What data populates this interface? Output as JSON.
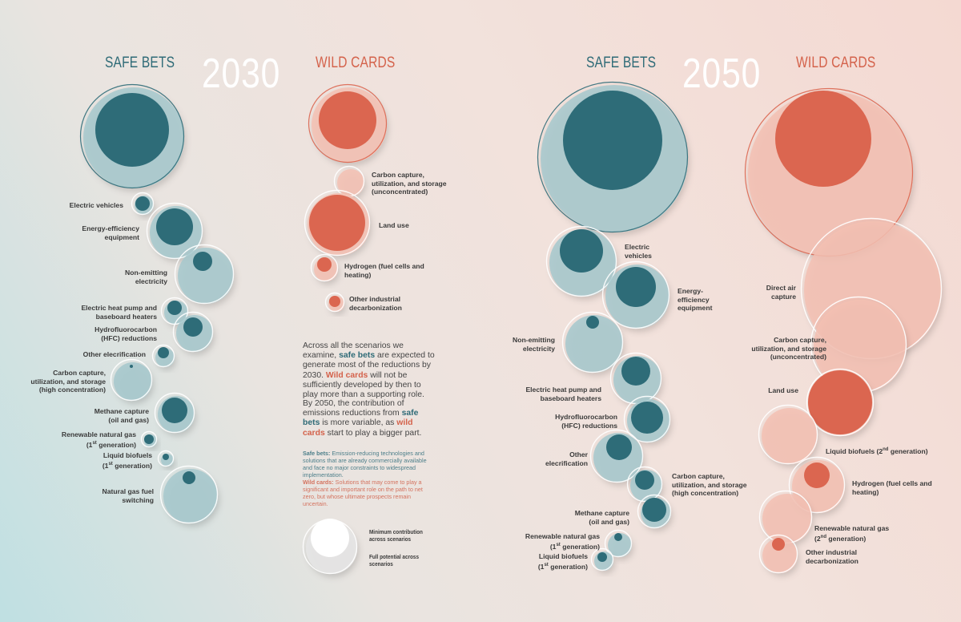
{
  "colors": {
    "safe_dark": "#2e6c78",
    "safe_light": "#a6c8cd",
    "wild_dark": "#db6650",
    "wild_light": "#f3c0b3"
  },
  "headers": {
    "y2030": "2030",
    "y2050": "2050",
    "safe": "SAFE BETS",
    "wild": "WILD CARDS"
  },
  "labels_2030_safe": [
    "Electric vehicles",
    "Energy-efficiency equipment",
    "Non-emitting electricity",
    "Electric heat pump and baseboard heaters",
    "Hydrofluorocarbon (HFC) reductions",
    "Other elecrification",
    "Carbon capture, utilization, and storage (high concentration)",
    "Methane capture (oil and gas)",
    "Renewable natural gas (1st generation)",
    "Liquid biofuels (1st generation)",
    "Natural gas fuel switching"
  ],
  "labels_2030_wild": [
    "Carbon capture, utilization, and storage (unconcentrated)",
    "Land use",
    "Hydrogen (fuel cells and heating)",
    "Other industrial decarbonization"
  ],
  "labels_2050_safe": [
    "Electric vehicles",
    "Energy-efficiency equipment",
    "Non-emitting electricity",
    "Electric heat pump and baseboard heaters",
    "Hydrofluorocarbon (HFC) reductions",
    "Other elecrification",
    "Carbon capture, utilization, and storage (high concentration)",
    "Methane capture (oil and gas)",
    "Renewable natural gas (1st generation)",
    "Liquid biofuels (1st generation)"
  ],
  "labels_2050_wild": [
    "Direct air capture",
    "Carbon capture, utilization, and storage (unconcentrated)",
    "Land use",
    "Liquid biofuels (2nd generation)",
    "Hydrogen (fuel cells and heating)",
    "Renewable natural gas (2nd generation)",
    "Other industrial decarbonization"
  ],
  "text": {
    "p1_a": "Across all the scenarios we examine, ",
    "p1_b": "safe bets",
    "p1_c": " are expected to generate most of the reductions by 2030. ",
    "p1_d": "Wild cards",
    "p1_e": " will not be sufficiently developed by then to play more than a supporting role.",
    "p2_a": "By 2050, the contribution of emissions reductions from ",
    "p2_b": "safe bets",
    "p2_c": " is more variable, as ",
    "p2_d": "wild cards",
    "p2_e": " start to play a bigger part.",
    "sb_def_head": "Safe bets:",
    "sb_def": " Emission-reducing technologies and solutions that are already commercially available and face no major constraints to widespread implementation.",
    "wc_def_head": "Wild cards:",
    "wc_def": " Solutions that may come to play a significant and important role on the path to net zero, but whose ultimate prospects remain uncertain."
  },
  "legend": {
    "min": "Minimum contribution across scenarios",
    "full": "Full potential across scenarios"
  }
}
